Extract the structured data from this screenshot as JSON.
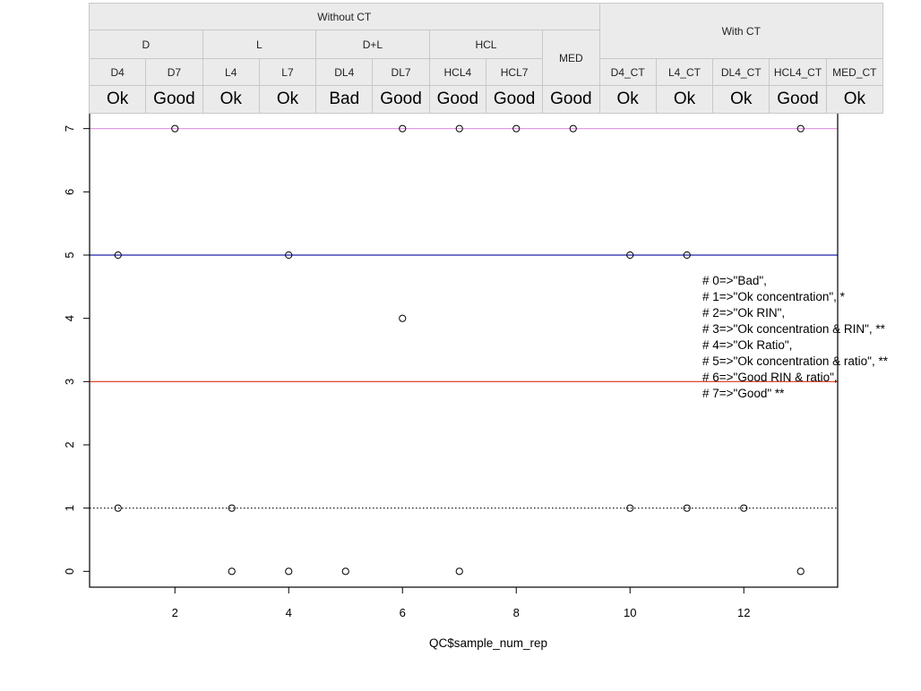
{
  "table": {
    "groups": [
      {
        "label": "Without CT",
        "span": 9
      },
      {
        "label": "With CT",
        "span": 5
      }
    ],
    "subgroups": [
      {
        "label": "D",
        "span": 2
      },
      {
        "label": "L",
        "span": 2
      },
      {
        "label": "D+L",
        "span": 2
      },
      {
        "label": "HCL",
        "span": 2
      },
      {
        "label": "MED",
        "span": 1
      }
    ],
    "samples": [
      "D4",
      "D7",
      "L4",
      "L7",
      "DL4",
      "DL7",
      "HCL4",
      "HCL7",
      "MED",
      "D4_CT",
      "L4_CT",
      "DL4_CT",
      "HCL4_CT",
      "MED_CT"
    ],
    "status": [
      "Ok",
      "Good",
      "Ok",
      "Ok",
      "Bad",
      "Good",
      "Good",
      "Good",
      "Good",
      "Ok",
      "Ok",
      "Ok",
      "Good",
      "Ok"
    ]
  },
  "legend_lines": [
    "# 0=>\"Bad\",",
    "# 1=>\"Ok concentration\", *",
    "# 2=>\"Ok RIN\",",
    "# 3=>\"Ok concentration & RIN\", **",
    "# 4=>\"Ok Ratio\",",
    "# 5=>\"Ok concentration & ratio\", **",
    "# 6=>\"Good RIN & ratio\",",
    "# 7=>\"Good\" **"
  ],
  "chart_data": {
    "type": "scatter",
    "xlabel": "QC$sample_num_rep",
    "ylabel": "",
    "xlim": [
      0.5,
      13.65
    ],
    "ylim": [
      -0.25,
      7.25
    ],
    "xticks": [
      2,
      4,
      6,
      8,
      10,
      12
    ],
    "yticks": [
      0,
      1,
      2,
      3,
      4,
      5,
      6,
      7
    ],
    "grid": false,
    "points": [
      {
        "x": 1,
        "y": 5
      },
      {
        "x": 1,
        "y": 1
      },
      {
        "x": 2,
        "y": 7
      },
      {
        "x": 3,
        "y": 1
      },
      {
        "x": 3,
        "y": 0
      },
      {
        "x": 4,
        "y": 5
      },
      {
        "x": 4,
        "y": 0
      },
      {
        "x": 5,
        "y": 0
      },
      {
        "x": 6,
        "y": 7
      },
      {
        "x": 6,
        "y": 4
      },
      {
        "x": 7,
        "y": 7
      },
      {
        "x": 7,
        "y": 0
      },
      {
        "x": 8,
        "y": 7
      },
      {
        "x": 9,
        "y": 7
      },
      {
        "x": 10,
        "y": 5
      },
      {
        "x": 10,
        "y": 1
      },
      {
        "x": 11,
        "y": 5
      },
      {
        "x": 11,
        "y": 1
      },
      {
        "x": 12,
        "y": 1
      },
      {
        "x": 13,
        "y": 7
      },
      {
        "x": 13,
        "y": 0
      }
    ],
    "hlines": [
      {
        "y": 7,
        "color": "#e08fe0",
        "style": "solid"
      },
      {
        "y": 5,
        "color": "#2222aa",
        "style": "solid"
      },
      {
        "y": 3,
        "color": "#dd3311",
        "style": "solid"
      },
      {
        "y": 1,
        "color": "#000000",
        "style": "dotted"
      }
    ]
  }
}
